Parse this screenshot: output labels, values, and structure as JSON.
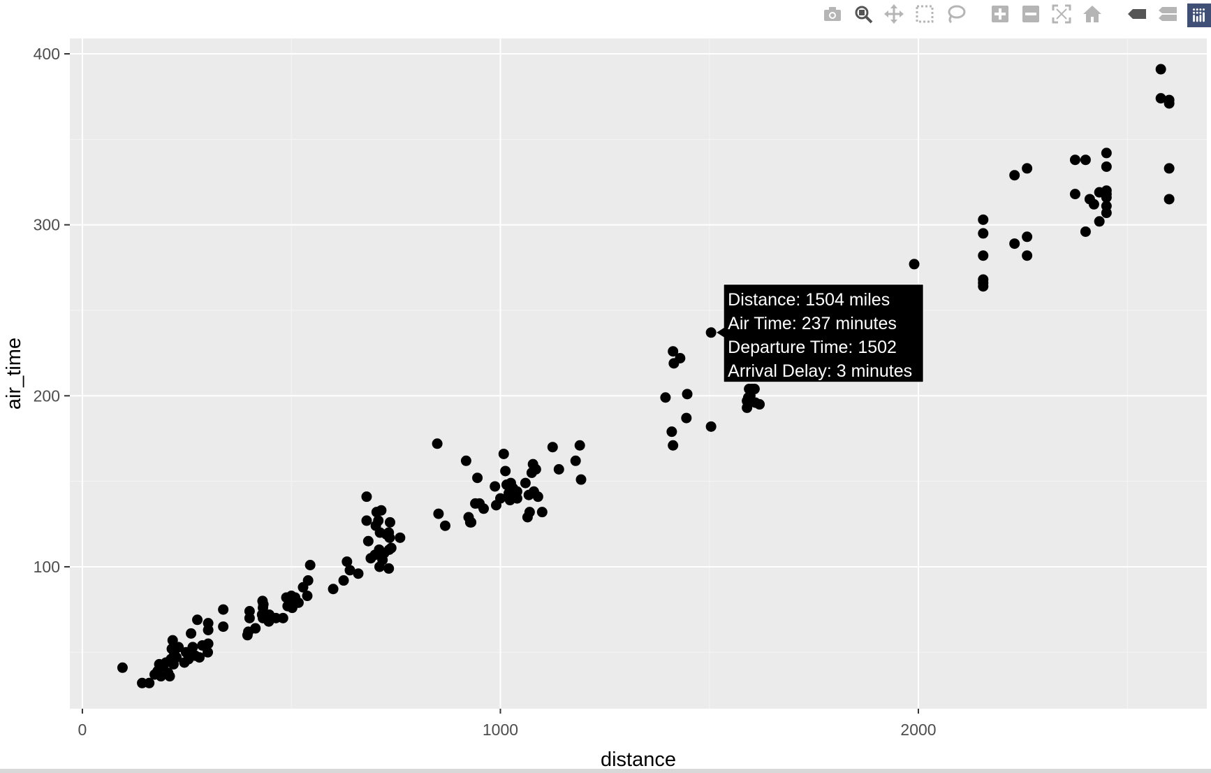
{
  "toolbar": {
    "buttons": [
      {
        "name": "camera-icon",
        "label": "Download plot as a png"
      },
      {
        "name": "zoom-icon",
        "label": "Zoom"
      },
      {
        "name": "pan-icon",
        "label": "Pan"
      },
      {
        "name": "box-select-icon",
        "label": "Box Select"
      },
      {
        "name": "lasso-select-icon",
        "label": "Lasso Select"
      },
      {
        "name": "zoom-in-icon",
        "label": "Zoom in"
      },
      {
        "name": "zoom-out-icon",
        "label": "Zoom out"
      },
      {
        "name": "autoscale-icon",
        "label": "Autoscale"
      },
      {
        "name": "reset-axes-icon",
        "label": "Reset axes"
      },
      {
        "name": "hover-closest-icon",
        "label": "Show closest data on hover"
      },
      {
        "name": "hover-compare-icon",
        "label": "Compare data on hover"
      },
      {
        "name": "plotly-logo-icon",
        "label": "Produced with Plotly"
      }
    ],
    "icon_color": "#b5b5b5",
    "active_icon_color": "#555555",
    "logo_color": "#3f4f75"
  },
  "chart_data": {
    "type": "scatter",
    "title": "",
    "xlabel": "distance",
    "ylabel": "air_time",
    "xlim": [
      -30,
      2690
    ],
    "ylim": [
      17,
      409
    ],
    "x_ticks": [
      0,
      1000,
      2000
    ],
    "y_ticks": [
      100,
      200,
      300,
      400
    ],
    "x_tick_labels": [
      "0",
      "1000",
      "2000"
    ],
    "y_tick_labels": [
      "100",
      "200",
      "300",
      "400"
    ],
    "grid": true,
    "panel_color": "#ebebeb",
    "grid_color": "#ffffff",
    "point_color": "#000000",
    "points": [
      [
        96,
        41
      ],
      [
        143,
        32
      ],
      [
        160,
        32
      ],
      [
        173,
        37
      ],
      [
        180,
        39
      ],
      [
        184,
        43
      ],
      [
        188,
        36
      ],
      [
        193,
        42
      ],
      [
        200,
        44
      ],
      [
        205,
        38
      ],
      [
        209,
        36
      ],
      [
        212,
        46
      ],
      [
        214,
        52
      ],
      [
        216,
        57
      ],
      [
        218,
        43
      ],
      [
        220,
        49
      ],
      [
        225,
        47
      ],
      [
        230,
        53
      ],
      [
        244,
        44
      ],
      [
        248,
        50
      ],
      [
        254,
        46
      ],
      [
        260,
        61
      ],
      [
        264,
        53
      ],
      [
        270,
        48
      ],
      [
        275,
        69
      ],
      [
        280,
        47
      ],
      [
        287,
        54
      ],
      [
        300,
        50
      ],
      [
        301,
        55
      ],
      [
        301,
        63
      ],
      [
        301,
        67
      ],
      [
        337,
        75
      ],
      [
        337,
        65
      ],
      [
        395,
        60
      ],
      [
        397,
        62
      ],
      [
        400,
        74
      ],
      [
        400,
        70
      ],
      [
        414,
        64
      ],
      [
        430,
        72
      ],
      [
        431,
        80
      ],
      [
        432,
        76
      ],
      [
        432,
        70
      ],
      [
        433,
        78
      ],
      [
        446,
        68
      ],
      [
        447,
        72
      ],
      [
        450,
        70
      ],
      [
        463,
        70
      ],
      [
        480,
        70
      ],
      [
        488,
        82
      ],
      [
        491,
        77
      ],
      [
        497,
        78
      ],
      [
        500,
        83
      ],
      [
        502,
        76
      ],
      [
        507,
        80
      ],
      [
        509,
        82
      ],
      [
        517,
        79
      ],
      [
        528,
        88
      ],
      [
        538,
        83
      ],
      [
        540,
        92
      ],
      [
        545,
        101
      ],
      [
        600,
        87
      ],
      [
        625,
        92
      ],
      [
        633,
        103
      ],
      [
        640,
        98
      ],
      [
        660,
        96
      ],
      [
        680,
        141
      ],
      [
        680,
        127
      ],
      [
        684,
        115
      ],
      [
        690,
        105
      ],
      [
        700,
        107
      ],
      [
        702,
        124
      ],
      [
        704,
        132
      ],
      [
        708,
        127
      ],
      [
        710,
        110
      ],
      [
        711,
        100
      ],
      [
        712,
        120
      ],
      [
        715,
        133
      ],
      [
        718,
        104
      ],
      [
        722,
        108
      ],
      [
        727,
        119
      ],
      [
        733,
        120
      ],
      [
        733,
        99
      ],
      [
        734,
        110
      ],
      [
        735,
        117
      ],
      [
        736,
        126
      ],
      [
        739,
        111
      ],
      [
        760,
        117
      ],
      [
        849,
        172
      ],
      [
        852,
        131
      ],
      [
        868,
        124
      ],
      [
        918,
        162
      ],
      [
        924,
        129
      ],
      [
        928,
        126
      ],
      [
        930,
        126
      ],
      [
        940,
        137
      ],
      [
        945,
        152
      ],
      [
        950,
        137
      ],
      [
        960,
        134
      ],
      [
        987,
        147
      ],
      [
        990,
        136
      ],
      [
        1000,
        140
      ],
      [
        1008,
        166
      ],
      [
        1012,
        156
      ],
      [
        1015,
        148
      ],
      [
        1020,
        143
      ],
      [
        1023,
        139
      ],
      [
        1025,
        149
      ],
      [
        1030,
        146
      ],
      [
        1040,
        144
      ],
      [
        1040,
        140
      ],
      [
        1060,
        149
      ],
      [
        1065,
        129
      ],
      [
        1068,
        142
      ],
      [
        1070,
        132
      ],
      [
        1075,
        155
      ],
      [
        1078,
        160
      ],
      [
        1080,
        144
      ],
      [
        1085,
        157
      ],
      [
        1090,
        141
      ],
      [
        1100,
        132
      ],
      [
        1125,
        170
      ],
      [
        1140,
        157
      ],
      [
        1180,
        162
      ],
      [
        1190,
        171
      ],
      [
        1193,
        151
      ],
      [
        1395,
        199
      ],
      [
        1410,
        179
      ],
      [
        1413,
        171
      ],
      [
        1413,
        226
      ],
      [
        1415,
        219
      ],
      [
        1430,
        222
      ],
      [
        1445,
        187
      ],
      [
        1447,
        201
      ],
      [
        1504,
        182
      ],
      [
        1504,
        237
      ],
      [
        1590,
        193
      ],
      [
        1590,
        197
      ],
      [
        1593,
        199
      ],
      [
        1595,
        204
      ],
      [
        1598,
        200
      ],
      [
        1602,
        204
      ],
      [
        1608,
        204
      ],
      [
        1610,
        196
      ],
      [
        1620,
        195
      ],
      [
        1990,
        277
      ],
      [
        2155,
        303
      ],
      [
        2155,
        295
      ],
      [
        2155,
        282
      ],
      [
        2155,
        268
      ],
      [
        2155,
        264
      ],
      [
        2155,
        266
      ],
      [
        2230,
        329
      ],
      [
        2230,
        289
      ],
      [
        2260,
        333
      ],
      [
        2260,
        293
      ],
      [
        2260,
        282
      ],
      [
        2375,
        338
      ],
      [
        2375,
        318
      ],
      [
        2400,
        338
      ],
      [
        2400,
        296
      ],
      [
        2410,
        315
      ],
      [
        2420,
        312
      ],
      [
        2433,
        319
      ],
      [
        2433,
        302
      ],
      [
        2450,
        342
      ],
      [
        2450,
        334
      ],
      [
        2450,
        320
      ],
      [
        2450,
        316
      ],
      [
        2450,
        311
      ],
      [
        2450,
        307
      ],
      [
        2450,
        318
      ],
      [
        2580,
        391
      ],
      [
        2580,
        374
      ],
      [
        2600,
        373
      ],
      [
        2600,
        371
      ],
      [
        2600,
        333
      ],
      [
        2600,
        315
      ]
    ],
    "tooltip": {
      "target_point": [
        1504,
        237
      ],
      "lines": [
        "Distance: 1504 miles",
        "Air Time: 237 minutes",
        "Departure Time: 1502",
        "Arrival Delay: 3 minutes"
      ],
      "background": "#000000",
      "text_color": "#ffffff"
    }
  }
}
